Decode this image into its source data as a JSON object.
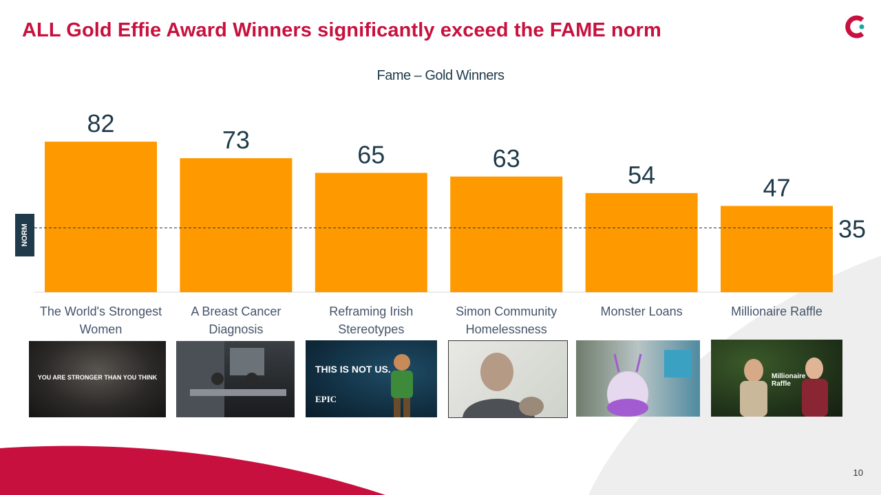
{
  "slide": {
    "title": "ALL Gold Effie Award Winners significantly exceed the FAME norm",
    "page_number": "10",
    "norm_label": "NORM",
    "logo_icon": "c-logo-icon"
  },
  "colors": {
    "title": "#c8103e",
    "bar": "#ff9900",
    "value_text": "#1f3a4a",
    "norm_badge": "#1f3a4a",
    "accent_red": "#c8103e",
    "swoosh_gray": "#eeeeee"
  },
  "chart_data": {
    "type": "bar",
    "title": "Fame – Gold Winners",
    "categories": [
      [
        "The World's Strongest",
        "Women"
      ],
      [
        "A Breast Cancer",
        "Diagnosis"
      ],
      [
        "Reframing Irish",
        "Stereotypes"
      ],
      [
        "Simon Community",
        "Homelessness"
      ],
      [
        "Monster Loans"
      ],
      [
        "Millionaire Raffle"
      ]
    ],
    "values": [
      82,
      73,
      65,
      63,
      54,
      47
    ],
    "norm": 35,
    "ylim": [
      0,
      100
    ],
    "grid": false,
    "legend": "none"
  },
  "thumbnails": [
    {
      "name": "thumb-worlds-strongest-women",
      "caption": "YOU ARE STRONGER THAN YOU THINK"
    },
    {
      "name": "thumb-breast-cancer-diagnosis",
      "caption": ""
    },
    {
      "name": "thumb-reframing-irish-stereotypes",
      "caption": "THIS IS NOT US.",
      "sub": "EPIC"
    },
    {
      "name": "thumb-simon-community",
      "caption": ""
    },
    {
      "name": "thumb-monster-loans",
      "caption": ""
    },
    {
      "name": "thumb-millionaire-raffle",
      "caption": "Millionaire Raffle"
    }
  ]
}
